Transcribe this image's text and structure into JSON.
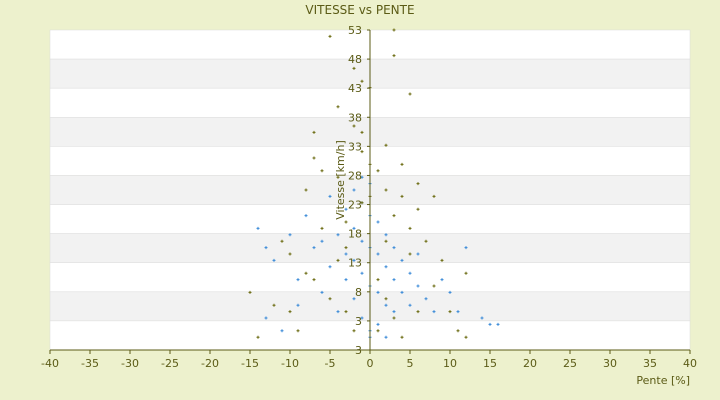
{
  "chart_data": {
    "type": "scatter",
    "title": "VITESSE vs PENTE",
    "xlabel": "Pente [%]",
    "ylabel": "Vitesse [km/h]",
    "xlim": [
      -40,
      40
    ],
    "ylim": [
      3,
      53
    ],
    "xticks": [
      "-40",
      "-35",
      "-30",
      "-25",
      "-20",
      "-15",
      "-10",
      "-5",
      "0",
      "5",
      "10",
      "15",
      "20",
      "25",
      "30",
      "35",
      "40"
    ],
    "yticks": [
      "53",
      "48",
      "43",
      "38",
      "33",
      "28",
      "23",
      "18",
      "13",
      "8",
      "3",
      "3"
    ],
    "grid": "horizontal alternating bands",
    "colors": {
      "background": "#edf1cd",
      "band_light": "#ffffff",
      "band_dark": "#f2f2f2",
      "axis": "#5b5b16"
    },
    "series": [
      {
        "color": "#3a8ad8",
        "marker": "plus",
        "points": [
          [
            -14,
            22
          ],
          [
            -13,
            19
          ],
          [
            -12,
            17
          ],
          [
            -10,
            21
          ],
          [
            -9,
            14
          ],
          [
            -8,
            24
          ],
          [
            -7,
            19
          ],
          [
            -6,
            12
          ],
          [
            -5,
            27
          ],
          [
            -5,
            16
          ],
          [
            -4,
            21
          ],
          [
            -4,
            9
          ],
          [
            -3,
            25
          ],
          [
            -3,
            18
          ],
          [
            -3,
            14
          ],
          [
            -2,
            28
          ],
          [
            -2,
            22
          ],
          [
            -2,
            17
          ],
          [
            -2,
            11
          ],
          [
            -1,
            26
          ],
          [
            -1,
            20
          ],
          [
            -1,
            15
          ],
          [
            -1,
            8
          ],
          [
            0,
            24
          ],
          [
            0,
            19
          ],
          [
            0,
            13
          ],
          [
            0,
            6
          ],
          [
            1,
            23
          ],
          [
            1,
            18
          ],
          [
            1,
            12
          ],
          [
            1,
            7
          ],
          [
            2,
            21
          ],
          [
            2,
            16
          ],
          [
            2,
            10
          ],
          [
            3,
            19
          ],
          [
            3,
            14
          ],
          [
            3,
            9
          ],
          [
            4,
            17
          ],
          [
            4,
            12
          ],
          [
            5,
            15
          ],
          [
            5,
            10
          ],
          [
            6,
            13
          ],
          [
            7,
            11
          ],
          [
            8,
            9
          ],
          [
            10,
            12
          ],
          [
            12,
            19
          ],
          [
            14,
            8
          ],
          [
            15,
            7
          ],
          [
            16,
            7
          ],
          [
            -11,
            6
          ],
          [
            -13,
            8
          ],
          [
            -9,
            10
          ],
          [
            0,
            5
          ],
          [
            2,
            5
          ],
          [
            -1,
            30
          ],
          [
            0,
            29
          ],
          [
            11,
            9
          ],
          [
            9,
            14
          ],
          [
            6,
            18
          ],
          [
            -6,
            20
          ]
        ]
      },
      {
        "color": "#6b6b10",
        "marker": "plus",
        "points": [
          [
            -5,
            52
          ],
          [
            3,
            53
          ],
          [
            3,
            49
          ],
          [
            -2,
            47
          ],
          [
            0,
            44
          ],
          [
            -1,
            45
          ],
          [
            5,
            43
          ],
          [
            -4,
            41
          ],
          [
            -7,
            37
          ],
          [
            -2,
            38
          ],
          [
            -1,
            37
          ],
          [
            4,
            32
          ],
          [
            2,
            35
          ],
          [
            -7,
            33
          ],
          [
            -6,
            31
          ],
          [
            -8,
            28
          ],
          [
            6,
            29
          ],
          [
            8,
            27
          ],
          [
            -4,
            30
          ],
          [
            1,
            31
          ],
          [
            2,
            28
          ],
          [
            0,
            27
          ],
          [
            -1,
            34
          ],
          [
            3,
            24
          ],
          [
            5,
            22
          ],
          [
            -3,
            23
          ],
          [
            -6,
            22
          ],
          [
            -10,
            18
          ],
          [
            7,
            20
          ],
          [
            9,
            17
          ],
          [
            -15,
            12
          ],
          [
            -12,
            10
          ],
          [
            -14,
            5
          ],
          [
            -9,
            6
          ],
          [
            12,
            15
          ],
          [
            10,
            9
          ],
          [
            11,
            6
          ],
          [
            6,
            9
          ],
          [
            4,
            5
          ],
          [
            -2,
            6
          ],
          [
            -5,
            11
          ],
          [
            -8,
            15
          ],
          [
            3,
            8
          ],
          [
            -3,
            9
          ],
          [
            1,
            14
          ],
          [
            2,
            20
          ],
          [
            -1,
            26
          ],
          [
            0,
            32
          ],
          [
            5,
            18
          ],
          [
            -11,
            20
          ],
          [
            -7,
            14
          ],
          [
            8,
            13
          ],
          [
            12,
            5
          ],
          [
            -4,
            17
          ],
          [
            6,
            25
          ],
          [
            2,
            11
          ],
          [
            -10,
            9
          ],
          [
            1,
            6
          ],
          [
            4,
            27
          ],
          [
            -3,
            19
          ]
        ]
      }
    ]
  }
}
